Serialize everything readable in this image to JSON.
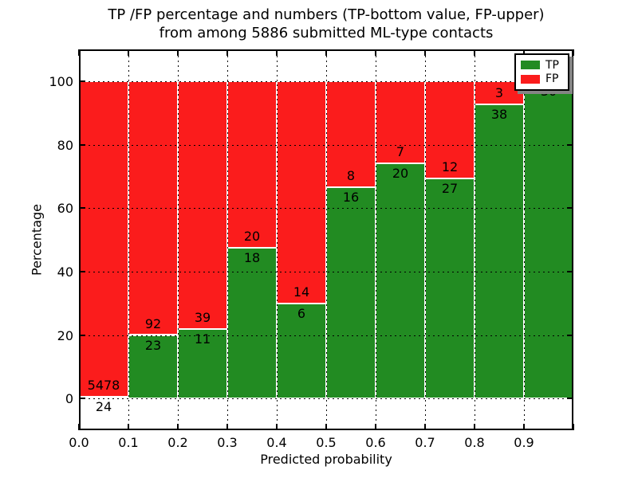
{
  "title": {
    "line1": "TP /FP percentage and numbers (TP-bottom value, FP-upper)",
    "line2": "from among 5886 submitted ML-type contacts"
  },
  "axes": {
    "xlabel": "Predicted probability",
    "ylabel": "Percentage",
    "xtick_labels": [
      "0.0",
      "0.1",
      "0.2",
      "0.3",
      "0.4",
      "0.5",
      "0.6",
      "0.7",
      "0.8",
      "0.9"
    ],
    "ytick_values": [
      0,
      20,
      40,
      60,
      80,
      100
    ]
  },
  "legend": {
    "position": "upper right",
    "items": [
      {
        "label": "TP",
        "color": "#228b22"
      },
      {
        "label": "FP",
        "color": "#fb1c1c"
      }
    ]
  },
  "colors": {
    "tp": "#228b22",
    "fp": "#fb1c1c",
    "bar_edge": "#ffffff",
    "grid": "#000000",
    "background": "#ffffff"
  },
  "chart_data": {
    "type": "bar",
    "stacked": true,
    "normalization": "each bin scaled to 100%, labels show raw counts (TP bottom, FP upper)",
    "title": "TP /FP percentage and numbers (TP-bottom value, FP-upper) from among 5886 submitted ML-type contacts",
    "xlabel": "Predicted probability",
    "ylabel": "Percentage",
    "total_contacts": 5886,
    "categories": [
      "0.0-0.1",
      "0.1-0.2",
      "0.2-0.3",
      "0.3-0.4",
      "0.4-0.5",
      "0.5-0.6",
      "0.6-0.7",
      "0.7-0.8",
      "0.8-0.9",
      "0.9-1.0"
    ],
    "series": [
      {
        "name": "TP",
        "values": [
          24,
          23,
          11,
          18,
          6,
          16,
          20,
          27,
          38,
          30
        ]
      },
      {
        "name": "FP",
        "values": [
          5478,
          92,
          39,
          20,
          14,
          8,
          7,
          12,
          3,
          0
        ]
      }
    ],
    "tp_percent": [
      0.44,
      20.0,
      22.0,
      47.37,
      30.0,
      66.67,
      74.07,
      69.23,
      92.68,
      100.0
    ],
    "xlim": [
      0,
      1
    ],
    "ylim": [
      -10,
      110
    ],
    "grid": true,
    "legend_position": "upper right"
  }
}
